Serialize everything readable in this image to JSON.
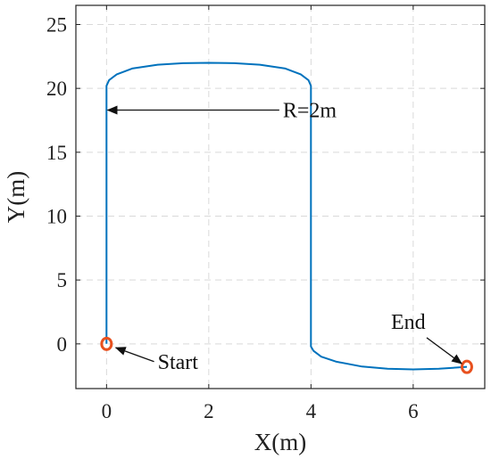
{
  "chart_data": {
    "type": "line",
    "title": "",
    "xlabel": "X(m)",
    "ylabel": "Y(m)",
    "xlim": [
      -0.6,
      7.4
    ],
    "ylim": [
      -3.5,
      26.5
    ],
    "xticks": [
      0,
      2,
      4,
      6
    ],
    "yticks": [
      0,
      5,
      10,
      15,
      20,
      25
    ],
    "grid": true,
    "legend": "none",
    "series": [
      {
        "color": "#0072BD",
        "x": [
          0,
          0,
          0.05,
          0.2,
          0.5,
          1.0,
          1.5,
          2.0,
          2.5,
          3.0,
          3.5,
          3.8,
          3.95,
          4.0,
          4.0,
          4.05,
          4.2,
          4.5,
          5.0,
          5.5,
          6.0,
          6.5,
          7.05
        ],
        "y": [
          0,
          20.2,
          20.65,
          21.1,
          21.55,
          21.85,
          21.97,
          22.0,
          21.97,
          21.85,
          21.55,
          21.1,
          20.65,
          20.2,
          -0.2,
          -0.55,
          -1.0,
          -1.4,
          -1.78,
          -1.95,
          -2.0,
          -1.95,
          -1.8
        ]
      }
    ],
    "markers": [
      {
        "name": "start",
        "x": 0,
        "y": 0,
        "color": "#E8501E"
      },
      {
        "name": "end",
        "x": 7.05,
        "y": -1.8,
        "color": "#E8501E"
      }
    ],
    "annotations": [
      {
        "name": "radius",
        "text": "R=2m",
        "text_x": 3.45,
        "text_y": 18.3,
        "arrow_to_x": 0.02,
        "arrow_to_y": 18.3
      },
      {
        "name": "start",
        "text": "Start",
        "text_x": 1.0,
        "text_y": -1.25,
        "arrow_to_x": 0.18,
        "arrow_to_y": -0.3
      },
      {
        "name": "end",
        "text": "End",
        "text_x": 5.95,
        "text_y": 0.9,
        "arrow_to_x": 6.95,
        "arrow_to_y": -1.55
      }
    ]
  }
}
